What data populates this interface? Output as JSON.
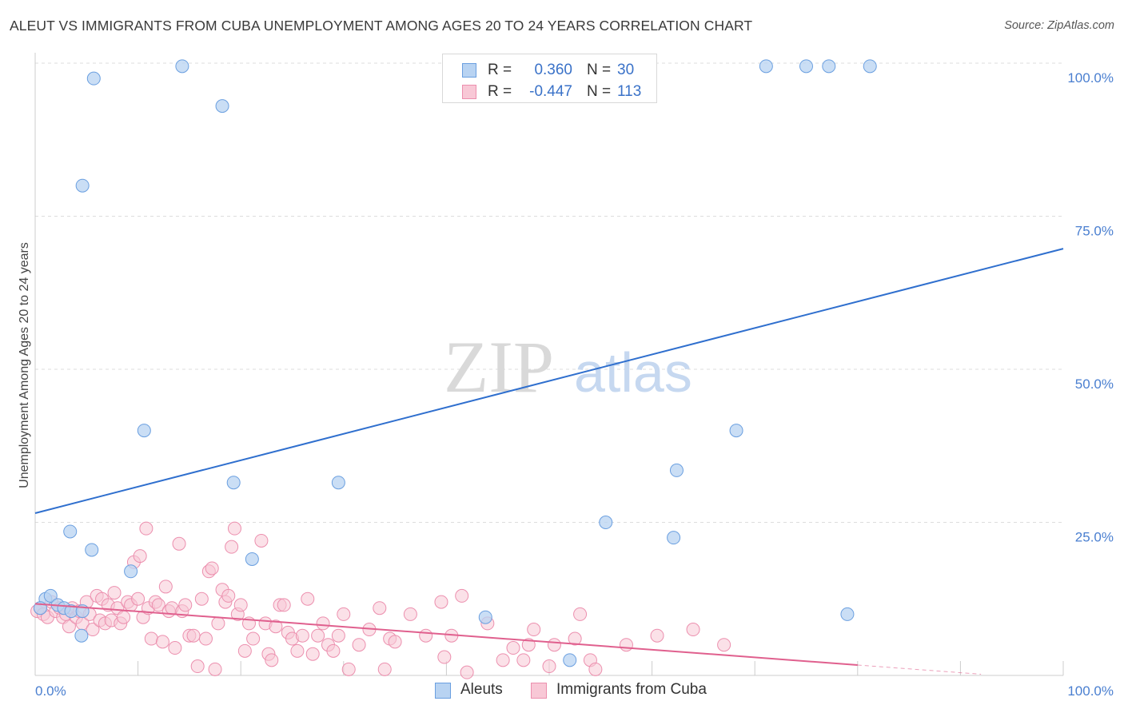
{
  "header": {
    "title": "ALEUT VS IMMIGRANTS FROM CUBA UNEMPLOYMENT AMONG AGES 20 TO 24 YEARS CORRELATION CHART",
    "source": "Source: ZipAtlas.com"
  },
  "watermark": {
    "zip": "ZIP",
    "atlas": "atlas"
  },
  "legend": {
    "rows": [
      {
        "r_label": "R =",
        "r_value": "0.360",
        "n_label": "N =",
        "n_value": "30"
      },
      {
        "r_label": "R =",
        "r_value": "-0.447",
        "n_label": "N =",
        "n_value": "113"
      }
    ]
  },
  "bottom_legend": {
    "series_a": "Aleuts",
    "series_b": "Immigrants from Cuba"
  },
  "colors": {
    "aleut_fill": "#b8d3f2",
    "aleut_stroke": "#6a9fe0",
    "aleut_line": "#2f6fce",
    "cuba_fill": "#f8c8d6",
    "cuba_stroke": "#ec8fae",
    "cuba_line": "#e0608e",
    "grid": "#dddddd",
    "tick_text": "#4a7fd0"
  },
  "chart_data": {
    "type": "scatter",
    "title": "ALEUT VS IMMIGRANTS FROM CUBA UNEMPLOYMENT AMONG AGES 20 TO 24 YEARS CORRELATION CHART",
    "xlabel": "",
    "ylabel": "Unemployment Among Ages 20 to 24 years",
    "xlim": [
      0,
      100
    ],
    "ylim": [
      0,
      100
    ],
    "x_tick_labels": [
      "0.0%",
      "100.0%"
    ],
    "y_tick_labels": [
      "25.0%",
      "50.0%",
      "75.0%",
      "100.0%"
    ],
    "y_ticks": [
      25,
      50,
      75,
      100
    ],
    "grid": true,
    "legend_position": "top-center",
    "series": [
      {
        "name": "Aleuts",
        "points": [
          [
            1.0,
            12.5
          ],
          [
            1.5,
            13
          ],
          [
            2.2,
            11.5
          ],
          [
            2.8,
            11
          ],
          [
            3.5,
            10.5
          ],
          [
            3.4,
            23.5
          ],
          [
            4.6,
            10.5
          ],
          [
            5.5,
            20.5
          ],
          [
            4.5,
            6.5
          ],
          [
            4.6,
            80
          ],
          [
            5.7,
            97.5
          ],
          [
            9.3,
            17
          ],
          [
            10.6,
            40
          ],
          [
            14.3,
            99.5
          ],
          [
            18.2,
            93
          ],
          [
            19.3,
            31.5
          ],
          [
            21.1,
            19
          ],
          [
            29.5,
            31.5
          ],
          [
            43.8,
            9.5
          ],
          [
            52.0,
            2.5
          ],
          [
            55.5,
            25
          ],
          [
            62.1,
            22.5
          ],
          [
            62.4,
            33.5
          ],
          [
            68.2,
            40
          ],
          [
            71.1,
            99.5
          ],
          [
            75.0,
            99.5
          ],
          [
            77.2,
            99.5
          ],
          [
            81.2,
            99.5
          ],
          [
            79.0,
            10
          ],
          [
            0.5,
            11
          ]
        ],
        "trend": {
          "x": [
            0,
            100
          ],
          "y": [
            26.5,
            69.7
          ]
        }
      },
      {
        "name": "Immigrants from Cuba",
        "points": [
          [
            0.2,
            10.5
          ],
          [
            0.5,
            11
          ],
          [
            0.8,
            10
          ],
          [
            1.2,
            9.5
          ],
          [
            1.6,
            12
          ],
          [
            2.0,
            10.5
          ],
          [
            2.4,
            11
          ],
          [
            2.7,
            9.5
          ],
          [
            3.0,
            10
          ],
          [
            3.3,
            8
          ],
          [
            3.6,
            11
          ],
          [
            4.0,
            9.5
          ],
          [
            4.3,
            10.5
          ],
          [
            4.6,
            8.5
          ],
          [
            5.0,
            12
          ],
          [
            5.3,
            10
          ],
          [
            5.6,
            7.5
          ],
          [
            6.0,
            13
          ],
          [
            6.3,
            9
          ],
          [
            6.5,
            12.5
          ],
          [
            6.8,
            8.5
          ],
          [
            7.1,
            11.5
          ],
          [
            7.4,
            9
          ],
          [
            7.7,
            13.5
          ],
          [
            8.0,
            11
          ],
          [
            8.3,
            8.5
          ],
          [
            8.6,
            9.5
          ],
          [
            9.0,
            12
          ],
          [
            9.3,
            11.5
          ],
          [
            9.6,
            18.5
          ],
          [
            10.0,
            12.5
          ],
          [
            10.2,
            19.5
          ],
          [
            10.5,
            9.5
          ],
          [
            10.8,
            24
          ],
          [
            11.0,
            11
          ],
          [
            11.3,
            6
          ],
          [
            11.7,
            12
          ],
          [
            12.0,
            11.5
          ],
          [
            12.4,
            5.5
          ],
          [
            12.7,
            14.5
          ],
          [
            13.0,
            10.5
          ],
          [
            13.3,
            11
          ],
          [
            13.6,
            4.5
          ],
          [
            14.0,
            21.5
          ],
          [
            14.3,
            10.5
          ],
          [
            14.6,
            11.5
          ],
          [
            15.0,
            6.5
          ],
          [
            15.4,
            6.5
          ],
          [
            15.8,
            1.5
          ],
          [
            16.2,
            12.5
          ],
          [
            16.6,
            6
          ],
          [
            16.9,
            17
          ],
          [
            17.2,
            17.5
          ],
          [
            17.5,
            1
          ],
          [
            17.8,
            8.5
          ],
          [
            18.2,
            14
          ],
          [
            18.5,
            12
          ],
          [
            18.8,
            13
          ],
          [
            19.1,
            21
          ],
          [
            19.4,
            24
          ],
          [
            19.7,
            10
          ],
          [
            20.0,
            11.5
          ],
          [
            20.4,
            4
          ],
          [
            20.8,
            8.5
          ],
          [
            21.2,
            6
          ],
          [
            22.0,
            22
          ],
          [
            22.4,
            8.5
          ],
          [
            22.7,
            3.5
          ],
          [
            23.0,
            2.5
          ],
          [
            23.4,
            8
          ],
          [
            23.8,
            11.5
          ],
          [
            24.2,
            11.5
          ],
          [
            24.6,
            7
          ],
          [
            25.0,
            6
          ],
          [
            25.5,
            4
          ],
          [
            26.0,
            6.5
          ],
          [
            26.5,
            12.5
          ],
          [
            27.0,
            3.5
          ],
          [
            27.5,
            6.5
          ],
          [
            28.0,
            8.5
          ],
          [
            28.5,
            5
          ],
          [
            29.0,
            4
          ],
          [
            29.5,
            6.5
          ],
          [
            30.0,
            10
          ],
          [
            30.5,
            1
          ],
          [
            31.5,
            5
          ],
          [
            32.5,
            7.5
          ],
          [
            33.5,
            11
          ],
          [
            34.0,
            1
          ],
          [
            34.5,
            6
          ],
          [
            35.0,
            5.5
          ],
          [
            36.5,
            10
          ],
          [
            38.0,
            6.5
          ],
          [
            39.5,
            12
          ],
          [
            39.8,
            3
          ],
          [
            40.5,
            6.5
          ],
          [
            41.5,
            13
          ],
          [
            42.0,
            0.5
          ],
          [
            44.0,
            8.5
          ],
          [
            45.5,
            2.5
          ],
          [
            46.5,
            4.5
          ],
          [
            47.5,
            2.5
          ],
          [
            48.0,
            5
          ],
          [
            48.5,
            7.5
          ],
          [
            50.0,
            1.5
          ],
          [
            50.5,
            5
          ],
          [
            52.5,
            6
          ],
          [
            53.0,
            10
          ],
          [
            54.0,
            2.5
          ],
          [
            54.5,
            1
          ],
          [
            57.5,
            5
          ],
          [
            60.5,
            6.5
          ],
          [
            64.0,
            7.5
          ],
          [
            67.0,
            5
          ]
        ],
        "trend": {
          "x": [
            0,
            80
          ],
          "y": [
            11.7,
            1.7
          ]
        }
      }
    ]
  }
}
